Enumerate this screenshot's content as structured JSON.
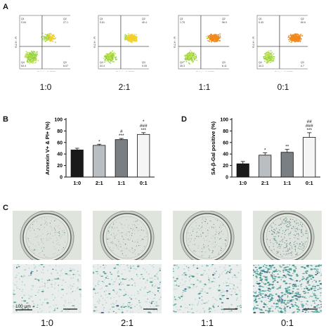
{
  "panels": {
    "a": "A",
    "b": "B",
    "c": "C",
    "d": "D"
  },
  "flow": {
    "x_axis": "FL1-H :: AV FITC",
    "y_axis": "FL2-H :: PI",
    "gates": [
      "Q1",
      "Q2",
      "Q3",
      "Q4"
    ],
    "plots": [
      {
        "ratio": "1:0",
        "q1": "0.54",
        "q2": "27.1",
        "q4": "54.4",
        "q3": "8.07"
      },
      {
        "ratio": "2:1",
        "q1": "0.61",
        "q2": "40.4",
        "q4": "44.4",
        "q3": "9.05"
      },
      {
        "ratio": "1:1",
        "q1": "1.75",
        "q2": "56.9",
        "q4": "35.3",
        "q3": "6.11"
      },
      {
        "ratio": "0:1",
        "q1": "0.43",
        "q2": "60.6",
        "q4": "34.3",
        "q3": "4.7"
      }
    ]
  },
  "colors": {
    "bar_1_0": "#1a1a1a",
    "bar_2_1": "#b9bec2",
    "bar_1_1": "#7a7f83",
    "bar_0_1": "#f5f5f5",
    "stain": "#2f8f86",
    "gate_line": "#333333"
  },
  "chart_data": [
    {
      "type": "bar",
      "ylabel": "Annexin V+ & PI+ (%)",
      "categories": [
        "1:0",
        "2:1",
        "1:1",
        "0:1"
      ],
      "values": [
        47,
        55,
        65,
        74
      ],
      "errors": [
        3,
        2,
        2,
        3
      ],
      "ylim": [
        0,
        100
      ],
      "yticks": [
        "0",
        "20",
        "40",
        "60",
        "80",
        "100"
      ],
      "annotations": [
        [
          ""
        ],
        [
          "*"
        ],
        [
          "#",
          "***"
        ],
        [
          "*",
          "###",
          "***"
        ]
      ]
    },
    {
      "type": "bar",
      "ylabel": "SA-β-Gal positive (%)",
      "categories": [
        "1:0",
        "2:1",
        "1:1",
        "0:1"
      ],
      "values": [
        23,
        38,
        43,
        69
      ],
      "errors": [
        4,
        4,
        5,
        8
      ],
      "ylim": [
        0,
        100
      ],
      "yticks": [
        "0",
        "20",
        "40",
        "60",
        "80",
        "100"
      ],
      "annotations": [
        [
          ""
        ],
        [
          "*"
        ],
        [
          "**"
        ],
        [
          "##",
          "###",
          "***"
        ]
      ]
    }
  ],
  "staining": {
    "ratios": [
      "1:0",
      "2:1",
      "1:1",
      "0:1"
    ],
    "scale_bar": "100 µm",
    "densities": [
      0.2,
      0.3,
      0.35,
      0.9
    ]
  }
}
